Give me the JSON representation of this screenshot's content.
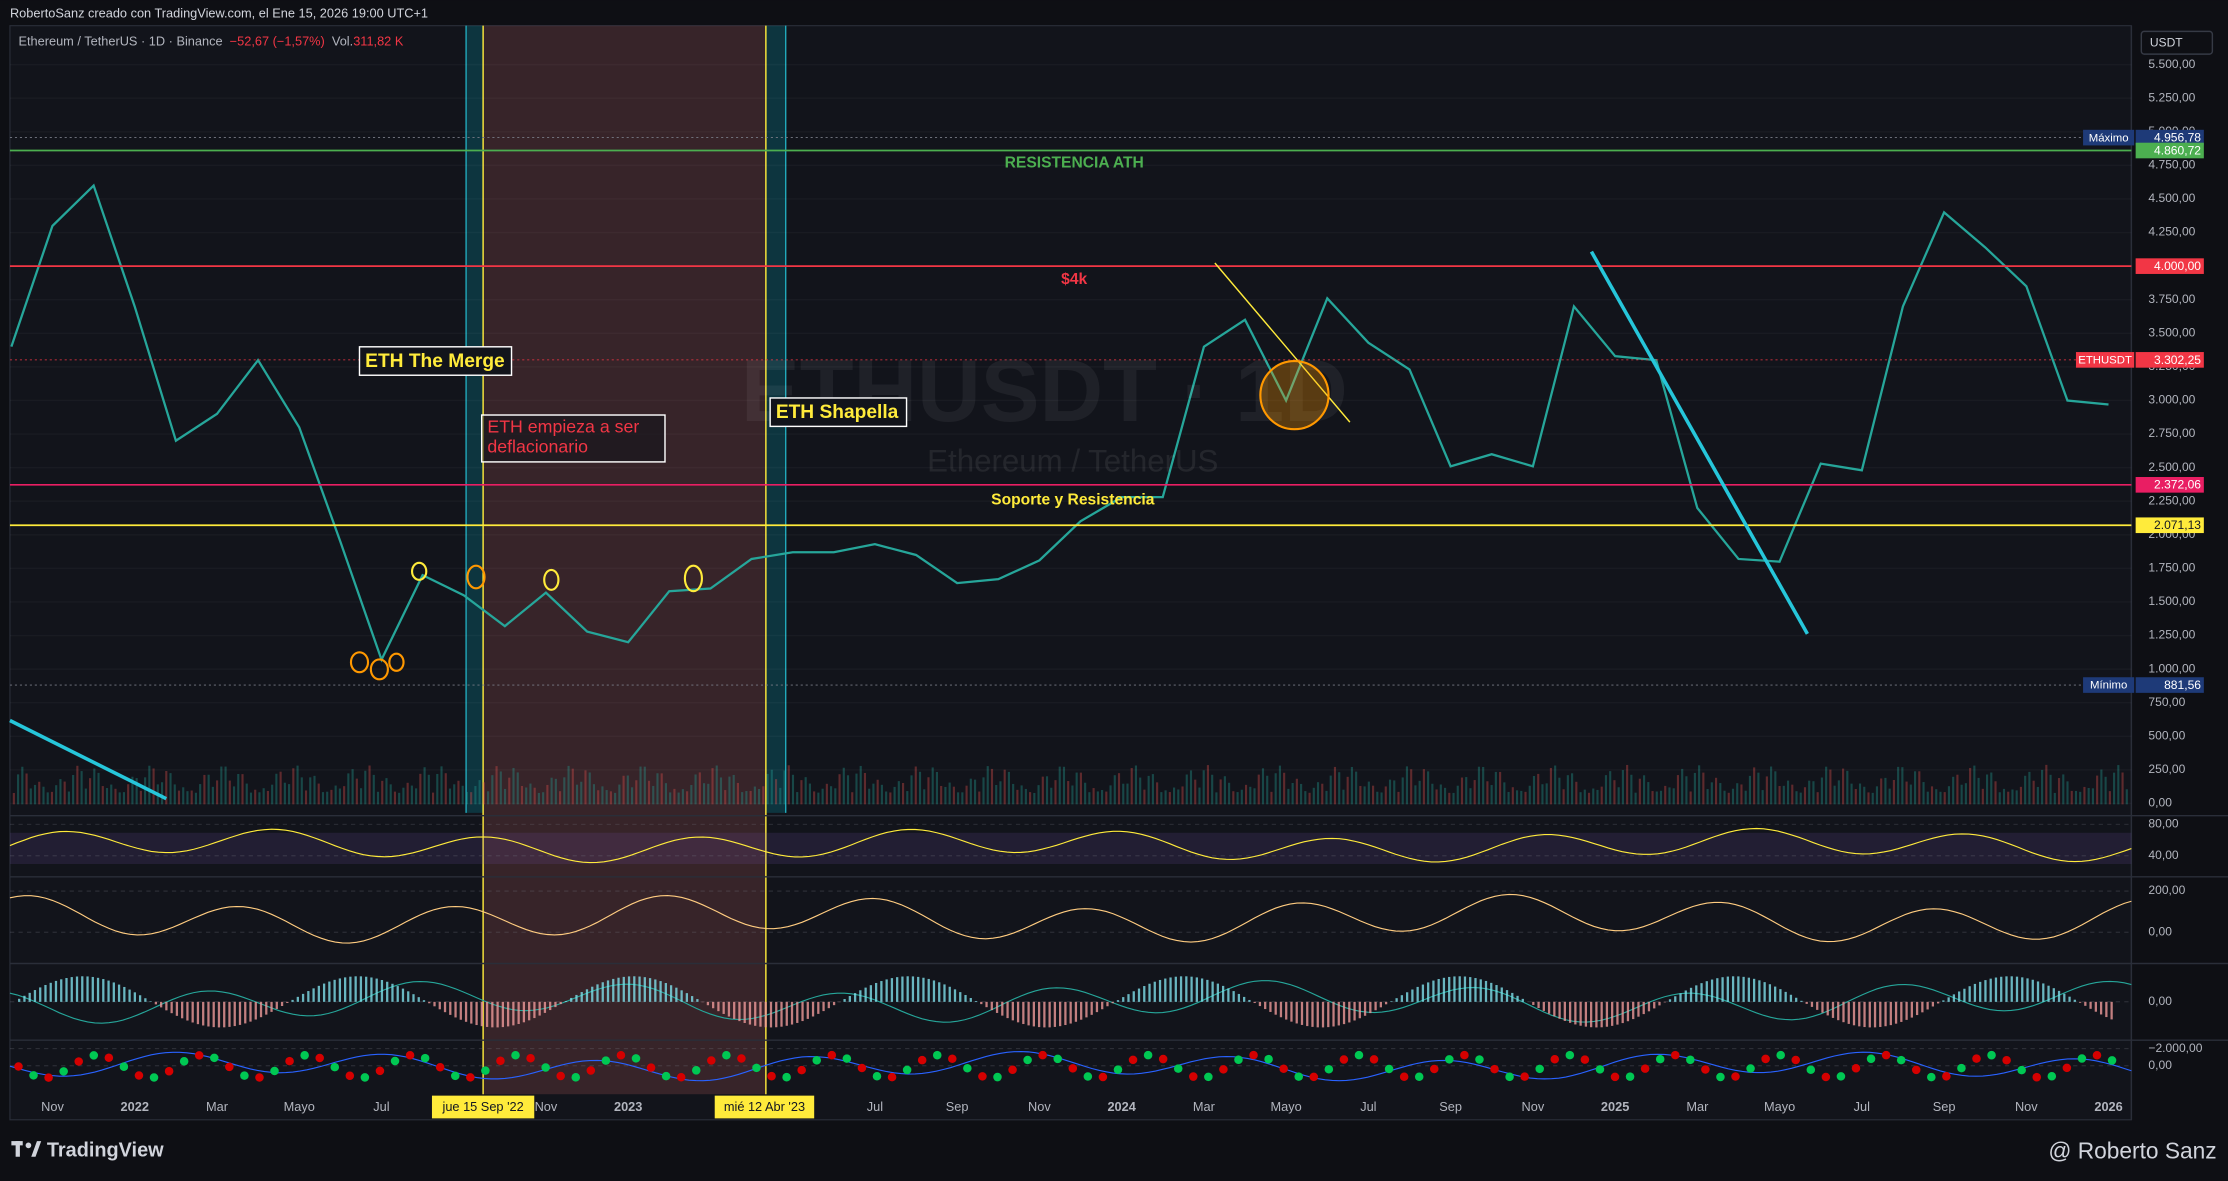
{
  "header": {
    "credit": "RobertoSanz creado con TradingView.com, el Ene 15, 2026 19:00 UTC+1"
  },
  "symbol": {
    "name": "Ethereum / TetherUS · 1D · Binance",
    "change": "−52,67 (−1,57%)",
    "volume_label": "Vol.",
    "volume": "311,82 K",
    "currency": "USDT"
  },
  "watermark": {
    "ticker": "ETHUSDT · 1D",
    "name": "Ethereum / TetherUS"
  },
  "annotations": {
    "ath": "RESISTENCIA ATH",
    "four_k": "$4k",
    "merge": "ETH The Merge",
    "deflation": [
      "ETH empieza a ser",
      "deflacionario"
    ],
    "shapella": "ETH Shapella",
    "support": "Soporte y Resistencia"
  },
  "events": [
    "jue 15 Sep '22",
    "mié 12 Abr '23"
  ],
  "chart_data": {
    "type": "line",
    "categories": [
      null,
      "Nov",
      null,
      "2022",
      null,
      "Mar",
      null,
      "Mayo",
      null,
      "Jul",
      null,
      null,
      null,
      "Nov",
      null,
      "2023",
      null,
      null,
      null,
      null,
      null,
      "Jul",
      null,
      "Sep",
      null,
      "Nov",
      null,
      "2024",
      null,
      "Mar",
      null,
      "Mayo",
      null,
      "Jul",
      null,
      "Sep",
      null,
      "Nov",
      null,
      "2025",
      null,
      "Mar",
      null,
      "Mayo",
      null,
      "Jul",
      null,
      "Sep",
      null,
      "Nov",
      null,
      "2026"
    ],
    "series": [
      {
        "name": "ETHUSDT",
        "color": "#26a69a",
        "values": [
          3400,
          4300,
          4600,
          3700,
          2700,
          2900,
          3300,
          2800,
          1950,
          1070,
          1700,
          1550,
          1320,
          1570,
          1280,
          1200,
          1580,
          1600,
          1820,
          1870,
          1870,
          1930,
          1850,
          1640,
          1670,
          1810,
          2100,
          2280,
          2280,
          3400,
          3600,
          3000,
          3760,
          3430,
          3230,
          2510,
          2600,
          2510,
          3700,
          3330,
          3300,
          2200,
          1820,
          1800,
          2530,
          2480,
          3700,
          4400,
          4140,
          3850,
          3000,
          2970
        ]
      }
    ],
    "ylim": [
      -70,
      5790
    ],
    "yticks": [
      {
        "value": 0,
        "label": "0,00"
      },
      {
        "value": 250,
        "label": "250,00"
      },
      {
        "value": 500,
        "label": "500,00"
      },
      {
        "value": 750,
        "label": "750,00"
      },
      {
        "value": 1000,
        "label": "1.000,00"
      },
      {
        "value": 1250,
        "label": "1.250,00"
      },
      {
        "value": 1500,
        "label": "1.500,00"
      },
      {
        "value": 1750,
        "label": "1.750,00"
      },
      {
        "value": 2000,
        "label": "2.000,00"
      },
      {
        "value": 2250,
        "label": "2.250,00"
      },
      {
        "value": 2500,
        "label": "2.500,00"
      },
      {
        "value": 2750,
        "label": "2.750,00"
      },
      {
        "value": 3000,
        "label": "3.000,00"
      },
      {
        "value": 3250,
        "label": "3.250,00"
      },
      {
        "value": 3500,
        "label": "3.500,00"
      },
      {
        "value": 3750,
        "label": "3.750,00"
      },
      {
        "value": 4000,
        "label": "4.000,00"
      },
      {
        "value": 4250,
        "label": "4.250,00"
      },
      {
        "value": 4500,
        "label": "4.500,00"
      },
      {
        "value": 4750,
        "label": "4.750,00"
      },
      {
        "value": 5000,
        "label": "5.000,00"
      },
      {
        "value": 5250,
        "label": "5.250,00"
      },
      {
        "value": 5500,
        "label": "5.500,00"
      }
    ],
    "levels": [
      {
        "value": 4956.78,
        "label": "4.956,78",
        "tag": "Máximo",
        "color": "#1e3a78",
        "style": "dotted"
      },
      {
        "value": 4860.72,
        "label": "4.860,72",
        "color": "#4caf50",
        "style": "solid"
      },
      {
        "value": 4000,
        "label": "4.000,00",
        "color": "#f23645",
        "style": "solid"
      },
      {
        "value": 3302.25,
        "label": "3.302,25",
        "tag": "ETHUSDT",
        "color": "#f23645",
        "style": "dotted"
      },
      {
        "value": 2372.06,
        "label": "2.372,06",
        "color": "#e91e63",
        "style": "solid"
      },
      {
        "value": 2071.13,
        "label": "2.071,13",
        "color": "#ffeb3b",
        "style": "solid"
      },
      {
        "value": 881.56,
        "label": "881,56",
        "tag": "Mínimo",
        "color": "#1e3a78",
        "style": "dotted"
      }
    ]
  },
  "panes": [
    {
      "ylim": [
        17,
        89
      ],
      "yticks": [
        {
          "value": 80,
          "label": "80,00"
        },
        {
          "value": 40,
          "label": "40,00"
        }
      ]
    },
    {
      "ylim": [
        -131,
        262
      ],
      "yticks": [
        {
          "value": 200,
          "label": "200,00"
        },
        {
          "value": 0,
          "label": "0,00"
        }
      ]
    },
    {
      "ylim": [
        -100,
        100
      ],
      "yticks": [
        {
          "value": 0,
          "label": "0,00"
        }
      ]
    },
    {
      "ylim": [
        3000,
        -2830
      ],
      "yticks": [
        {
          "value": -2000,
          "label": "−2.000,00"
        },
        {
          "value": 0,
          "label": "0,00"
        }
      ]
    }
  ],
  "footer": {
    "brand": "TradingView",
    "author": "@ Roberto Sanz"
  }
}
